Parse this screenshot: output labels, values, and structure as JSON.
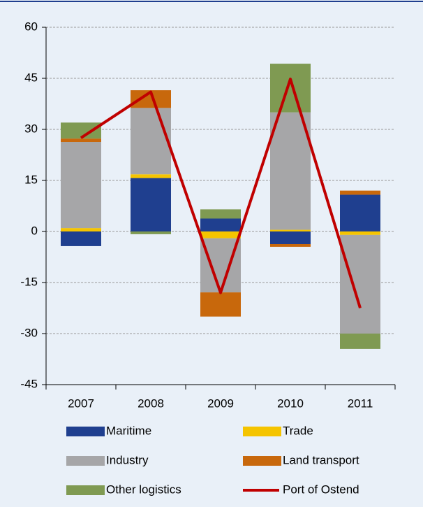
{
  "chart_data": {
    "type": "stacked_bar_line",
    "categories": [
      "2007",
      "2008",
      "2009",
      "2010",
      "2011"
    ],
    "series": [
      {
        "name": "Maritime",
        "color": "#1f3f8f",
        "values": [
          -4.3,
          15.7,
          3.8,
          -3.7,
          10.8
        ]
      },
      {
        "name": "Trade",
        "color": "#f5c400",
        "values": [
          1,
          1.1,
          -2,
          0.5,
          -1
        ]
      },
      {
        "name": "Industry",
        "color": "#a6a6a8",
        "values": [
          25.3,
          19.5,
          -15.9,
          34.5,
          -29
        ]
      },
      {
        "name": "Land transport",
        "color": "#c8680c",
        "values": [
          1,
          5.2,
          -7.1,
          -0.8,
          1.2
        ]
      },
      {
        "name": "Other logistics",
        "color": "#7f9a52",
        "values": [
          4.7,
          -0.8,
          2.7,
          14.3,
          -4.5
        ]
      }
    ],
    "line": {
      "name": "Port of Ostend",
      "color": "#c00000",
      "values": [
        27.5,
        41,
        -18,
        44.8,
        -22.5
      ]
    },
    "ylim": [
      -45,
      60
    ],
    "yticks": [
      -45,
      -30,
      -15,
      0,
      15,
      30,
      45,
      60
    ],
    "grid": true
  }
}
